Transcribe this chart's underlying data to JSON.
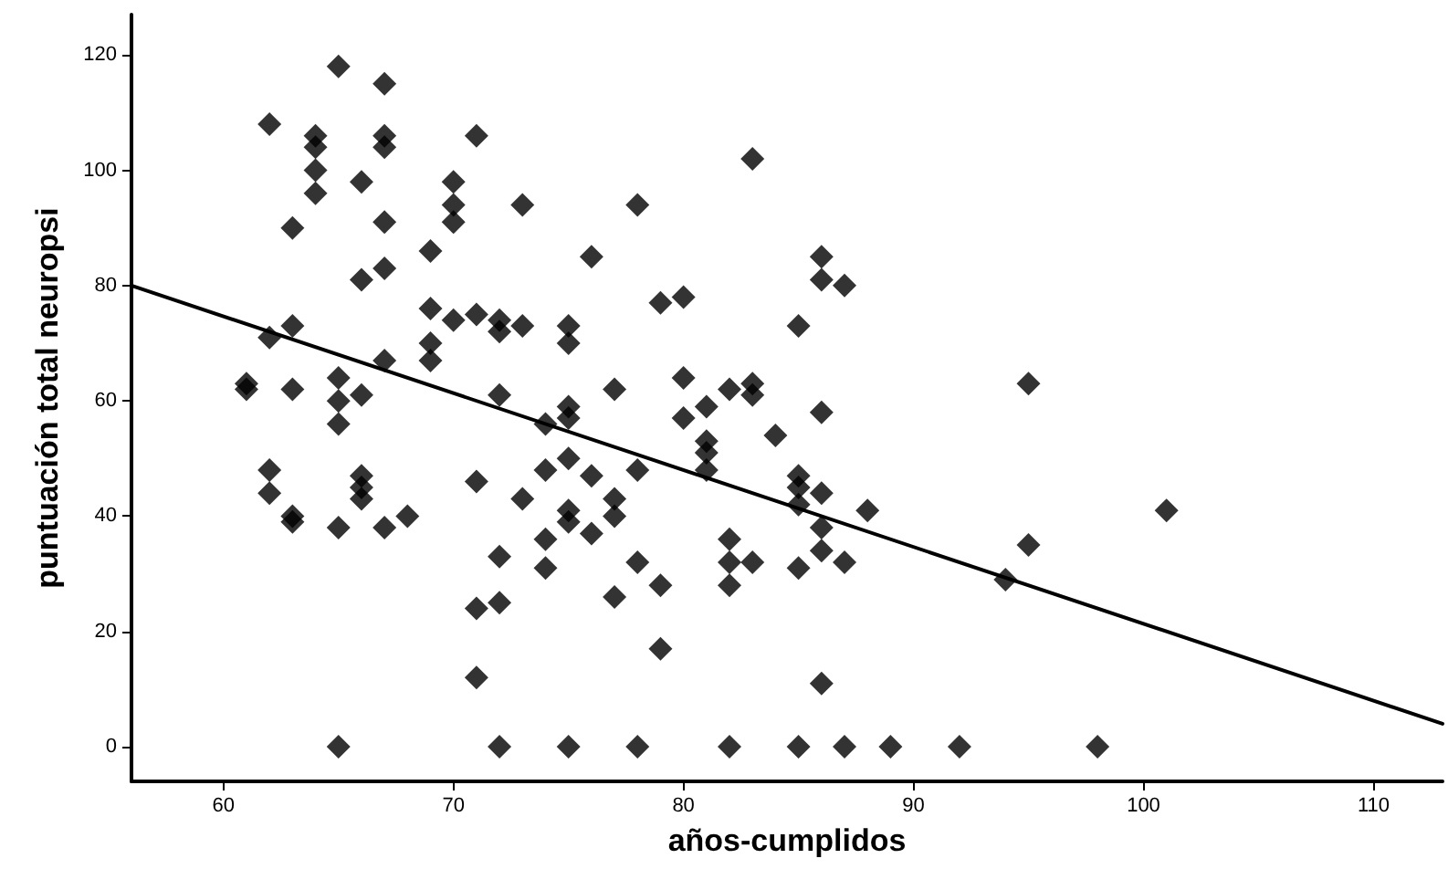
{
  "chart_data": {
    "type": "scatter",
    "xlabel": "años-cumplidos",
    "ylabel": "puntuación total neuropsi",
    "xlim": [
      56,
      113
    ],
    "ylim": [
      -6,
      127
    ],
    "xticks": [
      60,
      70,
      80,
      90,
      100,
      110
    ],
    "yticks": [
      0,
      20,
      40,
      60,
      80,
      100,
      120
    ],
    "grid": false,
    "marker": "diamond",
    "series": [
      {
        "color": "#000000",
        "x": [
          61,
          61,
          62,
          62,
          62,
          62,
          63,
          63,
          63,
          63,
          63,
          64,
          64,
          64,
          64,
          65,
          65,
          65,
          65,
          65,
          65,
          66,
          66,
          66,
          66,
          66,
          66,
          67,
          67,
          67,
          67,
          67,
          67,
          67,
          68,
          69,
          69,
          69,
          69,
          70,
          70,
          70,
          70,
          71,
          71,
          71,
          71,
          71,
          72,
          72,
          72,
          72,
          72,
          72,
          73,
          73,
          73,
          74,
          74,
          74,
          74,
          75,
          75,
          75,
          75,
          75,
          75,
          75,
          75,
          76,
          76,
          76,
          77,
          77,
          77,
          77,
          78,
          78,
          78,
          78,
          79,
          79,
          79,
          80,
          80,
          80,
          81,
          81,
          81,
          81,
          82,
          82,
          82,
          82,
          82,
          83,
          83,
          83,
          83,
          84,
          85,
          85,
          85,
          85,
          85,
          85,
          86,
          86,
          86,
          86,
          86,
          86,
          86,
          87,
          87,
          87,
          88,
          89,
          92,
          94,
          95,
          95,
          98,
          101
        ],
        "values": [
          63,
          62,
          108,
          71,
          48,
          44,
          90,
          73,
          62,
          40,
          39,
          106,
          104,
          100,
          96,
          118,
          64,
          60,
          56,
          38,
          0,
          98,
          81,
          61,
          47,
          45,
          43,
          115,
          106,
          104,
          91,
          83,
          67,
          38,
          40,
          86,
          76,
          70,
          67,
          98,
          94,
          91,
          74,
          106,
          75,
          46,
          24,
          12,
          74,
          72,
          61,
          33,
          25,
          0,
          94,
          73,
          43,
          56,
          48,
          36,
          31,
          73,
          70,
          59,
          57,
          50,
          41,
          39,
          0,
          85,
          47,
          37,
          62,
          43,
          40,
          26,
          94,
          48,
          32,
          0,
          77,
          28,
          17,
          78,
          64,
          57,
          59,
          53,
          51,
          48,
          62,
          36,
          32,
          28,
          0,
          102,
          63,
          61,
          32,
          54,
          73,
          47,
          45,
          42,
          31,
          0,
          85,
          81,
          58,
          44,
          38,
          34,
          11,
          80,
          32,
          0,
          41,
          0,
          0,
          29,
          63,
          35,
          0,
          41
        ]
      },
      {
        "type": "line",
        "color": "#000000",
        "marker": "none",
        "line_style": "solid",
        "x": [
          56,
          113
        ],
        "values": [
          80,
          4
        ]
      }
    ]
  }
}
